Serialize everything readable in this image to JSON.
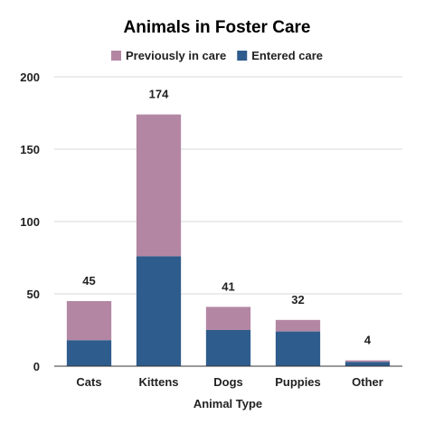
{
  "chart_data": {
    "type": "bar",
    "stacked": true,
    "title": "Animals in Foster Care",
    "xlabel": "Animal Type",
    "ylabel": "",
    "ylim": [
      0,
      200
    ],
    "yticks": [
      0,
      50,
      100,
      150,
      200
    ],
    "categories": [
      "Cats",
      "Kittens",
      "Dogs",
      "Puppies",
      "Other"
    ],
    "series": [
      {
        "name": "Entered care",
        "color": "#2e5c8c",
        "values": [
          18,
          76,
          25,
          24,
          3
        ]
      },
      {
        "name": "Previously in care",
        "color": "#b387a3",
        "values": [
          27,
          98,
          16,
          8,
          1
        ]
      }
    ],
    "totals": [
      45,
      174,
      41,
      32,
      4
    ],
    "legend_order": [
      "Previously in care",
      "Entered care"
    ],
    "legend_position": "top",
    "grid": true
  }
}
